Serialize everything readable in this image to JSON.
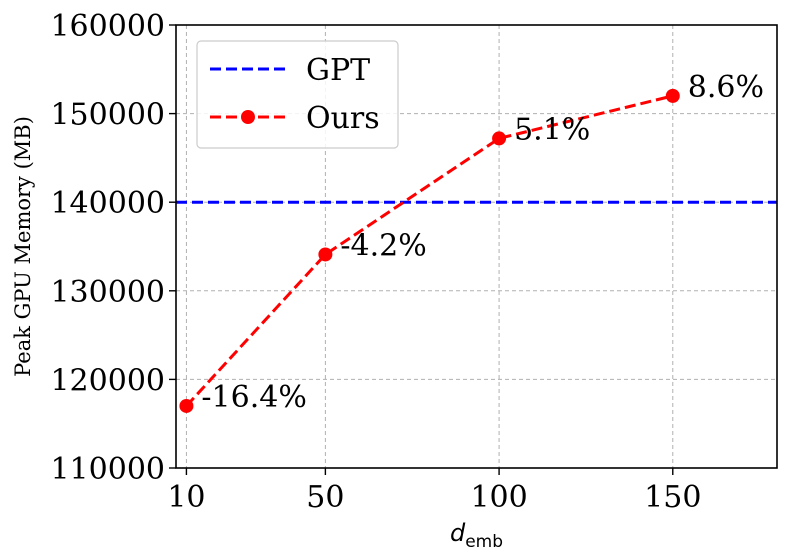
{
  "chart_data": {
    "type": "line",
    "title": "",
    "ylabel": "Peak GPU Memory (MB)",
    "xlabel": {
      "main": "d",
      "sub": "emb"
    },
    "xlim": [
      7,
      180
    ],
    "ylim": [
      110000,
      160000
    ],
    "xticks": [
      10,
      50,
      100,
      150
    ],
    "yticks": [
      110000,
      120000,
      130000,
      140000,
      150000,
      160000
    ],
    "grid": true,
    "legend": "top-left",
    "series": [
      {
        "name": "GPT",
        "style": "dashed-line",
        "color": "#0000ff",
        "y_const": 140000
      },
      {
        "name": "Ours",
        "style": "dashed-line-with-markers",
        "color": "#ff0000",
        "x": [
          10,
          50,
          100,
          150
        ],
        "y": [
          117000,
          134100,
          147200,
          152000
        ],
        "labels": [
          "-16.4%",
          "-4.2%",
          "5.1%",
          "8.6%"
        ]
      }
    ]
  }
}
